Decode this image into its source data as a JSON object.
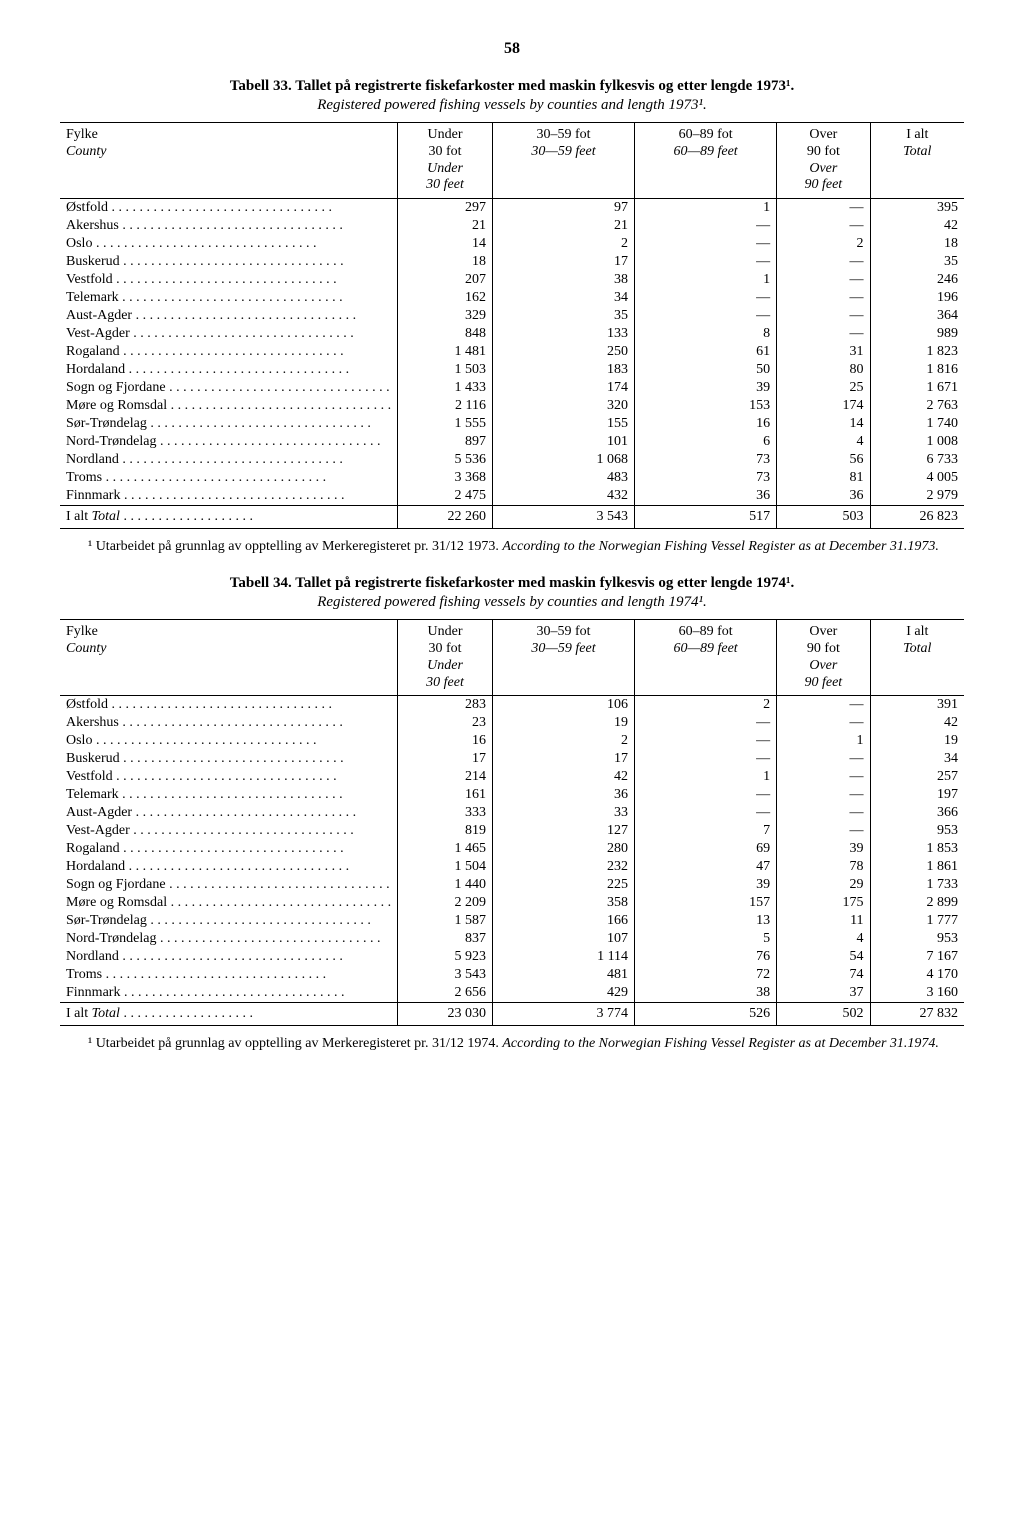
{
  "page_number": "58",
  "columns": {
    "county": {
      "top": "Fylke",
      "bottom_it": "County"
    },
    "c1": {
      "l1": "Under",
      "l2": "30 fot",
      "l3_it": "Under",
      "l4_it": "30 feet"
    },
    "c2": {
      "l1": "30–59 fot",
      "l2_it": "30—59 feet"
    },
    "c3": {
      "l1": "60–89 fot",
      "l2_it": "60—89 feet"
    },
    "c4": {
      "l1": "Over",
      "l2": "90 fot",
      "l3_it": "Over",
      "l4_it": "90 feet"
    },
    "c5": {
      "l1": "I alt",
      "l2_it": "Total"
    }
  },
  "table33": {
    "title": "Tabell 33. Tallet på registrerte fiskefarkoster med maskin fylkesvis og etter lengde 1973¹.",
    "subtitle": "Registered powered fishing vessels by counties and length 1973¹.",
    "rows": [
      {
        "name": "Østfold",
        "c1": "297",
        "c2": "97",
        "c3": "1",
        "c4": "—",
        "c5": "395"
      },
      {
        "name": "Akershus",
        "c1": "21",
        "c2": "21",
        "c3": "—",
        "c4": "—",
        "c5": "42"
      },
      {
        "name": "Oslo",
        "c1": "14",
        "c2": "2",
        "c3": "—",
        "c4": "2",
        "c5": "18"
      },
      {
        "name": "Buskerud",
        "c1": "18",
        "c2": "17",
        "c3": "—",
        "c4": "—",
        "c5": "35"
      },
      {
        "name": "Vestfold",
        "c1": "207",
        "c2": "38",
        "c3": "1",
        "c4": "—",
        "c5": "246"
      },
      {
        "name": "Telemark",
        "c1": "162",
        "c2": "34",
        "c3": "—",
        "c4": "—",
        "c5": "196"
      },
      {
        "name": "Aust-Agder",
        "c1": "329",
        "c2": "35",
        "c3": "—",
        "c4": "—",
        "c5": "364"
      },
      {
        "name": "Vest-Agder",
        "c1": "848",
        "c2": "133",
        "c3": "8",
        "c4": "—",
        "c5": "989"
      },
      {
        "name": "Rogaland",
        "c1": "1 481",
        "c2": "250",
        "c3": "61",
        "c4": "31",
        "c5": "1 823"
      },
      {
        "name": "Hordaland",
        "c1": "1 503",
        "c2": "183",
        "c3": "50",
        "c4": "80",
        "c5": "1 816"
      },
      {
        "name": "Sogn og Fjordane",
        "c1": "1 433",
        "c2": "174",
        "c3": "39",
        "c4": "25",
        "c5": "1 671"
      },
      {
        "name": "Møre og Romsdal",
        "c1": "2 116",
        "c2": "320",
        "c3": "153",
        "c4": "174",
        "c5": "2 763"
      },
      {
        "name": "Sør-Trøndelag",
        "c1": "1 555",
        "c2": "155",
        "c3": "16",
        "c4": "14",
        "c5": "1 740"
      },
      {
        "name": "Nord-Trøndelag",
        "c1": "897",
        "c2": "101",
        "c3": "6",
        "c4": "4",
        "c5": "1 008"
      },
      {
        "name": "Nordland",
        "c1": "5 536",
        "c2": "1 068",
        "c3": "73",
        "c4": "56",
        "c5": "6 733"
      },
      {
        "name": "Troms",
        "c1": "3 368",
        "c2": "483",
        "c3": "73",
        "c4": "81",
        "c5": "4 005"
      },
      {
        "name": "Finnmark",
        "c1": "2 475",
        "c2": "432",
        "c3": "36",
        "c4": "36",
        "c5": "2 979"
      }
    ],
    "total": {
      "label": "I alt",
      "label_it": "Total",
      "c1": "22 260",
      "c2": "3 543",
      "c3": "517",
      "c4": "503",
      "c5": "26 823"
    },
    "footnote_reg": "¹ Utarbeidet på grunnlag av opptelling av Merkeregisteret pr. 31/12 1973. ",
    "footnote_it": "According to the Norwegian Fishing Vessel Register as at December 31.1973."
  },
  "table34": {
    "title": "Tabell 34. Tallet på registrerte fiskefarkoster med maskin fylkesvis og etter lengde 1974¹.",
    "subtitle": "Registered powered fishing vessels by counties and length 1974¹.",
    "rows": [
      {
        "name": "Østfold",
        "c1": "283",
        "c2": "106",
        "c3": "2",
        "c4": "—",
        "c5": "391"
      },
      {
        "name": "Akershus",
        "c1": "23",
        "c2": "19",
        "c3": "—",
        "c4": "—",
        "c5": "42"
      },
      {
        "name": "Oslo",
        "c1": "16",
        "c2": "2",
        "c3": "—",
        "c4": "1",
        "c5": "19"
      },
      {
        "name": "Buskerud",
        "c1": "17",
        "c2": "17",
        "c3": "—",
        "c4": "—",
        "c5": "34"
      },
      {
        "name": "Vestfold",
        "c1": "214",
        "c2": "42",
        "c3": "1",
        "c4": "—",
        "c5": "257"
      },
      {
        "name": "Telemark",
        "c1": "161",
        "c2": "36",
        "c3": "—",
        "c4": "—",
        "c5": "197"
      },
      {
        "name": "Aust-Agder",
        "c1": "333",
        "c2": "33",
        "c3": "—",
        "c4": "—",
        "c5": "366"
      },
      {
        "name": "Vest-Agder",
        "c1": "819",
        "c2": "127",
        "c3": "7",
        "c4": "—",
        "c5": "953"
      },
      {
        "name": "Rogaland",
        "c1": "1 465",
        "c2": "280",
        "c3": "69",
        "c4": "39",
        "c5": "1 853"
      },
      {
        "name": "Hordaland",
        "c1": "1 504",
        "c2": "232",
        "c3": "47",
        "c4": "78",
        "c5": "1 861"
      },
      {
        "name": "Sogn og Fjordane",
        "c1": "1 440",
        "c2": "225",
        "c3": "39",
        "c4": "29",
        "c5": "1 733"
      },
      {
        "name": "Møre og Romsdal",
        "c1": "2 209",
        "c2": "358",
        "c3": "157",
        "c4": "175",
        "c5": "2 899"
      },
      {
        "name": "Sør-Trøndelag",
        "c1": "1 587",
        "c2": "166",
        "c3": "13",
        "c4": "11",
        "c5": "1 777"
      },
      {
        "name": "Nord-Trøndelag",
        "c1": "837",
        "c2": "107",
        "c3": "5",
        "c4": "4",
        "c5": "953"
      },
      {
        "name": "Nordland",
        "c1": "5 923",
        "c2": "1 114",
        "c3": "76",
        "c4": "54",
        "c5": "7 167"
      },
      {
        "name": "Troms",
        "c1": "3 543",
        "c2": "481",
        "c3": "72",
        "c4": "74",
        "c5": "4 170"
      },
      {
        "name": "Finnmark",
        "c1": "2 656",
        "c2": "429",
        "c3": "38",
        "c4": "37",
        "c5": "3 160"
      }
    ],
    "total": {
      "label": "I alt",
      "label_it": "Total",
      "c1": "23 030",
      "c2": "3 774",
      "c3": "526",
      "c4": "502",
      "c5": "27 832"
    },
    "footnote_reg": "¹ Utarbeidet på grunnlag av opptelling av Merkeregisteret pr. 31/12 1974. ",
    "footnote_it": "According to the Norwegian Fishing Vessel Register as at December 31.1974."
  }
}
